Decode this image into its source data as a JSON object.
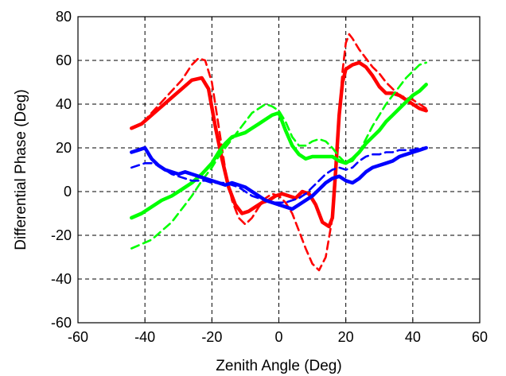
{
  "chart_data": {
    "type": "line",
    "title": "",
    "xlabel": "Zenith Angle (Deg)",
    "ylabel": "Differential Phase (Deg)",
    "xlim": [
      -60,
      60
    ],
    "ylim": [
      -60,
      80
    ],
    "xticks": [
      -60,
      -40,
      -20,
      0,
      20,
      40,
      60
    ],
    "yticks": [
      -60,
      -40,
      -20,
      0,
      20,
      40,
      60,
      80
    ],
    "grid": true,
    "series": [
      {
        "color": "#ff0000",
        "style": "solid",
        "x": [
          -44,
          -41,
          -38,
          -35,
          -32,
          -29,
          -26,
          -23,
          -21,
          -19,
          -17,
          -15,
          -13,
          -11,
          -9,
          -7,
          -5,
          -3,
          -1,
          1,
          3,
          5,
          7,
          9,
          11,
          13,
          15,
          16,
          17,
          18,
          19,
          20,
          22,
          24,
          26,
          28,
          30,
          32,
          34,
          36,
          38,
          40,
          42,
          44
        ],
        "y": [
          29,
          31,
          35,
          39,
          43,
          47,
          51,
          52,
          47,
          30,
          15,
          2,
          -6,
          -10,
          -9,
          -7,
          -5,
          -4,
          -2,
          -1,
          -2,
          -3,
          0,
          -1,
          -6,
          -14,
          -16,
          -12,
          10,
          35,
          50,
          56,
          58,
          59,
          57,
          53,
          48,
          45,
          45,
          44,
          42,
          40,
          38,
          37
        ]
      },
      {
        "color": "#ff0000",
        "style": "dashed",
        "x": [
          -44,
          -41,
          -38,
          -35,
          -32,
          -29,
          -26,
          -24,
          -22,
          -20,
          -18,
          -16,
          -14,
          -12,
          -10,
          -8,
          -6,
          -4,
          -2,
          0,
          2,
          4,
          6,
          8,
          10,
          12,
          14,
          16,
          17,
          18,
          19,
          20,
          21,
          22,
          24,
          26,
          28,
          30,
          32,
          34,
          36,
          38,
          40,
          42,
          44
        ],
        "y": [
          29,
          31,
          36,
          41,
          46,
          51,
          58,
          61,
          60,
          50,
          30,
          10,
          -4,
          -12,
          -15,
          -12,
          -7,
          -3,
          -1,
          -2,
          -5,
          -10,
          -18,
          -26,
          -33,
          -36,
          -30,
          -12,
          10,
          35,
          55,
          68,
          72,
          70,
          65,
          61,
          57,
          54,
          50,
          47,
          44,
          43,
          42,
          40,
          38
        ]
      },
      {
        "color": "#00ff00",
        "style": "solid",
        "x": [
          -44,
          -41,
          -38,
          -35,
          -32,
          -29,
          -26,
          -23,
          -20,
          -18,
          -16,
          -14,
          -12,
          -10,
          -8,
          -6,
          -4,
          -2,
          0,
          2,
          4,
          6,
          8,
          10,
          12,
          14,
          16,
          18,
          20,
          22,
          24,
          26,
          28,
          30,
          32,
          34,
          36,
          38,
          40,
          42,
          44
        ],
        "y": [
          -12,
          -10,
          -7,
          -4,
          -2,
          1,
          4,
          8,
          13,
          18,
          22,
          25,
          26,
          27,
          29,
          31,
          33,
          35,
          36,
          28,
          21,
          17,
          15,
          16,
          16,
          16,
          16,
          14,
          13,
          15,
          18,
          22,
          25,
          28,
          32,
          35,
          38,
          41,
          44,
          46,
          49
        ]
      },
      {
        "color": "#00ff00",
        "style": "dashed",
        "x": [
          -44,
          -41,
          -38,
          -35,
          -32,
          -29,
          -26,
          -23,
          -20,
          -18,
          -16,
          -14,
          -12,
          -10,
          -8,
          -6,
          -4,
          -2,
          0,
          2,
          4,
          6,
          8,
          10,
          12,
          14,
          16,
          18,
          20,
          22,
          24,
          26,
          28,
          30,
          32,
          34,
          36,
          38,
          40,
          42,
          44
        ],
        "y": [
          -26,
          -24,
          -22,
          -18,
          -14,
          -8,
          -2,
          5,
          11,
          16,
          20,
          24,
          28,
          32,
          36,
          38,
          40,
          39,
          37,
          32,
          25,
          21,
          21,
          23,
          24,
          23,
          20,
          16,
          13,
          14,
          18,
          24,
          30,
          35,
          40,
          44,
          48,
          52,
          55,
          58,
          59
        ]
      },
      {
        "color": "#0000ff",
        "style": "solid",
        "x": [
          -44,
          -42,
          -40,
          -38,
          -36,
          -34,
          -32,
          -30,
          -28,
          -26,
          -24,
          -22,
          -20,
          -18,
          -16,
          -14,
          -12,
          -10,
          -8,
          -6,
          -4,
          -2,
          0,
          2,
          4,
          6,
          8,
          10,
          12,
          14,
          16,
          18,
          20,
          22,
          24,
          26,
          28,
          30,
          32,
          34,
          36,
          38,
          40,
          42,
          44
        ],
        "y": [
          18,
          19,
          20,
          15,
          12,
          10,
          9,
          8,
          9,
          8,
          7,
          6,
          5,
          4,
          3,
          4,
          3,
          2,
          0,
          -2,
          -4,
          -5,
          -6,
          -7,
          -8,
          -6,
          -4,
          -2,
          1,
          4,
          6,
          7,
          5,
          4,
          6,
          9,
          11,
          12,
          13,
          14,
          16,
          17,
          18,
          19,
          20
        ]
      },
      {
        "color": "#0000ff",
        "style": "dashed",
        "x": [
          -44,
          -42,
          -40,
          -38,
          -36,
          -34,
          -32,
          -30,
          -28,
          -26,
          -24,
          -22,
          -20,
          -18,
          -16,
          -14,
          -12,
          -10,
          -8,
          -6,
          -4,
          -2,
          0,
          2,
          4,
          6,
          8,
          10,
          12,
          14,
          16,
          18,
          20,
          22,
          24,
          26,
          28,
          30,
          32,
          34,
          36,
          38,
          40,
          42,
          44
        ],
        "y": [
          11,
          12,
          13,
          13,
          12,
          10,
          8,
          7,
          6,
          5,
          5,
          5,
          4,
          4,
          4,
          3,
          2,
          0,
          -2,
          -3,
          -4,
          -5,
          -5,
          -5,
          -4,
          -3,
          -1,
          2,
          5,
          8,
          10,
          11,
          10,
          11,
          14,
          16,
          17,
          17,
          18,
          18,
          19,
          19,
          19,
          20,
          20
        ]
      }
    ]
  }
}
